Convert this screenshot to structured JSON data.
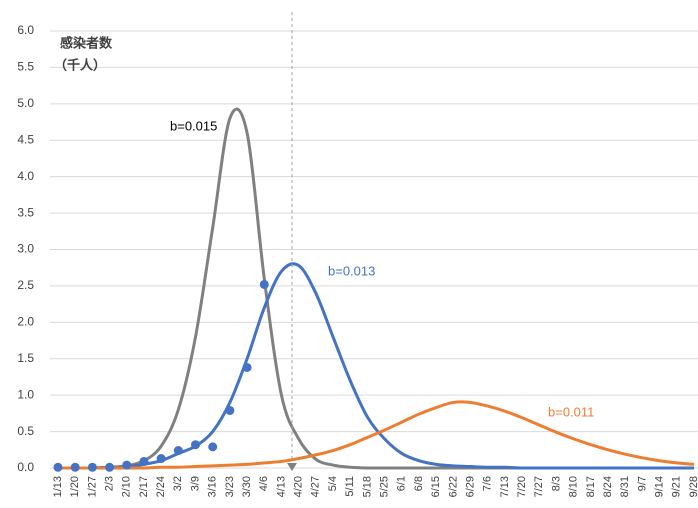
{
  "chart_data": {
    "type": "line",
    "y_label_line1": "感染者数",
    "y_label_line2": "（千人）",
    "categories": [
      "1/13",
      "1/20",
      "1/27",
      "2/3",
      "2/10",
      "2/17",
      "2/24",
      "3/2",
      "3/9",
      "3/16",
      "3/23",
      "3/30",
      "4/6",
      "4/13",
      "4/20",
      "4/27",
      "5/4",
      "5/11",
      "5/18",
      "5/25",
      "6/1",
      "6/8",
      "6/15",
      "6/22",
      "6/29",
      "7/6",
      "7/13",
      "7/20",
      "7/27",
      "8/3",
      "8/10",
      "8/17",
      "8/24",
      "8/31",
      "9/7",
      "9/14",
      "9/21",
      "9/28"
    ],
    "series": [
      {
        "name": "b=0.015",
        "color": "#808080",
        "values": [
          0,
          0,
          0,
          0.01,
          0.03,
          0.1,
          0.3,
          0.8,
          1.8,
          3.3,
          4.8,
          4.6,
          2.6,
          1.0,
          0.4,
          0.12,
          0.04,
          0.01,
          0,
          0,
          0,
          0,
          0,
          0,
          0,
          0,
          0,
          0,
          0,
          0,
          0,
          0,
          0,
          0,
          0,
          0,
          0,
          0
        ]
      },
      {
        "name": "b=0.013",
        "color": "#4472c4",
        "values": [
          0,
          0,
          0,
          0.01,
          0.02,
          0.05,
          0.1,
          0.2,
          0.3,
          0.5,
          0.9,
          1.5,
          2.2,
          2.7,
          2.78,
          2.4,
          1.8,
          1.2,
          0.7,
          0.4,
          0.2,
          0.1,
          0.05,
          0.03,
          0.02,
          0.01,
          0.01,
          0,
          0,
          0,
          0,
          0,
          0,
          0,
          0,
          0,
          0,
          0
        ]
      },
      {
        "name": "b=0.011",
        "color": "#ed7d31",
        "values": [
          0,
          0,
          0,
          0,
          0,
          0,
          0.01,
          0.01,
          0.02,
          0.03,
          0.04,
          0.05,
          0.07,
          0.09,
          0.13,
          0.18,
          0.24,
          0.32,
          0.42,
          0.52,
          0.63,
          0.74,
          0.83,
          0.9,
          0.9,
          0.85,
          0.78,
          0.69,
          0.59,
          0.49,
          0.4,
          0.32,
          0.25,
          0.19,
          0.14,
          0.1,
          0.07,
          0.05
        ]
      }
    ],
    "points": {
      "color": "#4472c4",
      "values": [
        0.01,
        0.01,
        0.01,
        0.01,
        0.04,
        0.09,
        0.13,
        0.24,
        0.32,
        0.29,
        0.79,
        1.38,
        2.52,
        null,
        null,
        null,
        null,
        null,
        null,
        null,
        null,
        null,
        null,
        null,
        null,
        null,
        null,
        null,
        null,
        null,
        null,
        null,
        null,
        null,
        null,
        null,
        null,
        null
      ]
    },
    "ylim": [
      0,
      6
    ],
    "yticks": [
      {
        "value": 0,
        "label": "0.0"
      },
      0.5,
      {
        "value": 1,
        "label": "1.0"
      },
      1.5,
      {
        "value": 2,
        "label": "2.0"
      },
      2.5,
      {
        "value": 3,
        "label": "3.0"
      },
      3.5,
      {
        "value": 4,
        "label": "4.0"
      },
      4.5,
      {
        "value": 5,
        "label": "5.0"
      },
      5.5,
      {
        "value": 6,
        "label": "6.0"
      }
    ],
    "grid": true
  }
}
